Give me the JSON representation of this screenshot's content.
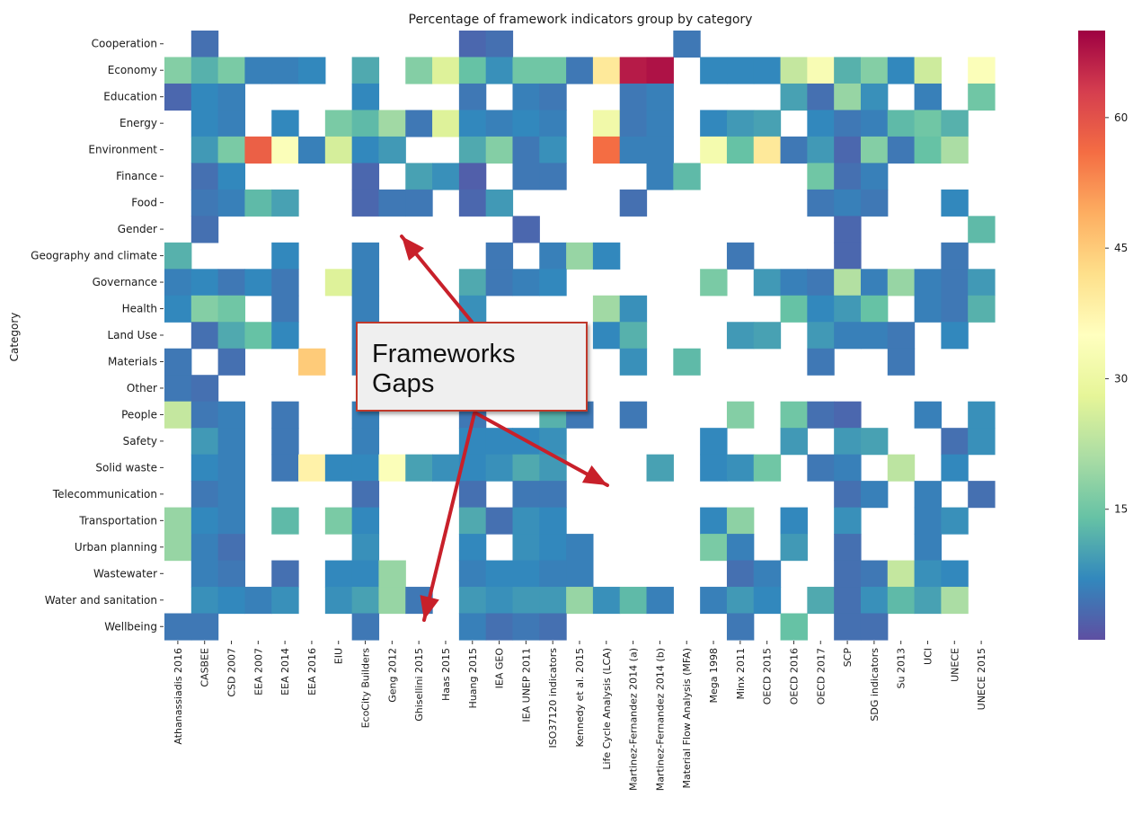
{
  "chart_data": {
    "type": "heatmap",
    "title": "Percentage of framework indicators group by category",
    "xlabel": "",
    "ylabel": "Category",
    "columns": [
      "Athanassiadis 2016",
      "CASBEE",
      "CSD 2007",
      "EEA 2007",
      "EEA 2014",
      "EEA 2016",
      "EIU",
      "EcoCity Builders",
      "Geng 2012",
      "Ghisellini 2015",
      "Haas 2015",
      "Huang 2015",
      "IEA GEO",
      "IEA UNEP 2011",
      "ISO37120 indicators",
      "Kennedy et al. 2015",
      "Life Cycle Analysis (LCA)",
      "Martinez-Fernandez 2014 (a)",
      "Martinez-Fernandez 2014 (b)",
      "Material Flow Analysis (MFA)",
      "Mega 1998",
      "Minx 2011",
      "OECD 2015",
      "OECD 2016",
      "OECD 2017",
      "SCP",
      "SDG indicators",
      "Su 2013",
      "UCI",
      "UNECE",
      "UNECE 2015"
    ],
    "rows": [
      "Cooperation",
      "Economy",
      "Education",
      "Energy",
      "Environment",
      "Finance",
      "Food",
      "Gender",
      "Geography and climate",
      "Governance",
      "Health",
      "Land Use",
      "Materials",
      "Other",
      "People",
      "Safety",
      "Solid waste",
      "Telecommunication",
      "Transportation",
      "Urban planning",
      "Wastewater",
      "Water and sanitation",
      "Wellbeing"
    ],
    "values": [
      [
        null,
        4,
        null,
        null,
        null,
        null,
        null,
        null,
        null,
        null,
        null,
        3,
        4,
        null,
        null,
        null,
        null,
        null,
        null,
        5,
        null,
        null,
        null,
        null,
        null,
        null,
        null,
        null,
        null,
        null,
        null
      ],
      [
        17,
        12,
        16,
        6,
        6,
        7,
        null,
        11,
        null,
        17,
        27,
        14,
        8,
        15,
        15,
        5,
        40,
        67,
        68,
        null,
        7,
        7,
        7,
        24,
        33,
        12,
        17,
        7,
        25,
        null,
        34
      ],
      [
        3,
        7,
        6,
        null,
        null,
        null,
        null,
        7,
        null,
        null,
        null,
        5,
        null,
        6,
        5,
        null,
        null,
        5,
        6,
        null,
        null,
        null,
        null,
        10,
        4,
        19,
        8,
        null,
        6,
        null,
        15
      ],
      [
        null,
        7,
        6,
        null,
        7,
        null,
        16,
        13,
        20,
        5,
        27,
        7,
        6,
        7,
        6,
        null,
        31,
        5,
        6,
        null,
        7,
        9,
        10,
        null,
        7,
        5,
        6,
        13,
        15,
        12,
        null
      ],
      [
        null,
        9,
        16,
        58,
        34,
        6,
        26,
        7,
        9,
        null,
        null,
        11,
        17,
        5,
        8,
        null,
        56,
        6,
        6,
        null,
        32,
        14,
        40,
        5,
        9,
        3,
        17,
        5,
        14,
        21,
        null
      ],
      [
        null,
        4,
        7,
        null,
        null,
        null,
        null,
        3,
        null,
        10,
        8,
        2,
        null,
        5,
        5,
        null,
        null,
        null,
        6,
        13,
        null,
        null,
        null,
        null,
        15,
        4,
        6,
        null,
        null,
        null,
        null
      ],
      [
        null,
        5,
        6,
        13,
        10,
        null,
        null,
        3,
        5,
        5,
        null,
        3,
        9,
        null,
        null,
        null,
        null,
        4,
        null,
        null,
        null,
        null,
        null,
        null,
        5,
        6,
        5,
        null,
        null,
        7,
        null
      ],
      [
        null,
        4,
        null,
        null,
        null,
        null,
        null,
        null,
        null,
        null,
        null,
        null,
        null,
        3,
        null,
        null,
        null,
        null,
        null,
        null,
        null,
        null,
        null,
        null,
        null,
        3,
        null,
        null,
        null,
        null,
        13
      ],
      [
        12,
        null,
        null,
        null,
        7,
        null,
        null,
        6,
        null,
        null,
        null,
        null,
        5,
        null,
        6,
        19,
        7,
        null,
        null,
        null,
        null,
        5,
        null,
        null,
        null,
        3,
        null,
        null,
        null,
        5,
        null
      ],
      [
        6,
        7,
        5,
        7,
        5,
        null,
        27,
        6,
        null,
        null,
        null,
        11,
        5,
        6,
        7,
        null,
        null,
        null,
        null,
        null,
        16,
        null,
        9,
        6,
        5,
        22,
        6,
        19,
        6,
        5,
        9
      ],
      [
        7,
        17,
        15,
        null,
        5,
        null,
        null,
        6,
        null,
        null,
        null,
        8,
        null,
        null,
        null,
        null,
        20,
        8,
        null,
        null,
        null,
        null,
        null,
        14,
        7,
        9,
        14,
        null,
        6,
        5,
        12
      ],
      [
        null,
        4,
        11,
        14,
        7,
        null,
        null,
        6,
        null,
        null,
        null,
        null,
        null,
        null,
        null,
        null,
        7,
        12,
        null,
        null,
        null,
        9,
        10,
        null,
        9,
        6,
        6,
        5,
        null,
        7,
        null
      ],
      [
        5,
        null,
        4,
        null,
        null,
        45,
        null,
        6,
        null,
        null,
        null,
        null,
        null,
        null,
        null,
        null,
        null,
        8,
        null,
        13,
        null,
        null,
        null,
        null,
        5,
        null,
        null,
        5,
        null,
        null,
        null
      ],
      [
        5,
        4,
        null,
        null,
        null,
        null,
        null,
        null,
        null,
        null,
        null,
        null,
        null,
        null,
        null,
        null,
        null,
        null,
        null,
        null,
        null,
        null,
        null,
        null,
        null,
        null,
        null,
        null,
        null,
        null,
        null
      ],
      [
        24,
        5,
        6,
        null,
        5,
        null,
        null,
        6,
        null,
        null,
        null,
        5,
        null,
        null,
        12,
        5,
        null,
        5,
        null,
        null,
        null,
        17,
        null,
        15,
        4,
        3,
        null,
        null,
        6,
        null,
        8
      ],
      [
        null,
        9,
        6,
        null,
        5,
        null,
        null,
        6,
        null,
        null,
        null,
        7,
        7,
        7,
        8,
        null,
        null,
        null,
        null,
        null,
        7,
        null,
        null,
        9,
        null,
        9,
        10,
        null,
        null,
        4,
        8
      ],
      [
        null,
        7,
        6,
        null,
        5,
        38,
        7,
        7,
        34,
        10,
        8,
        7,
        8,
        11,
        9,
        null,
        null,
        null,
        10,
        null,
        7,
        8,
        15,
        null,
        5,
        6,
        null,
        23,
        null,
        7,
        null
      ],
      [
        null,
        5,
        6,
        null,
        null,
        null,
        null,
        4,
        null,
        null,
        null,
        4,
        null,
        5,
        5,
        null,
        null,
        null,
        null,
        null,
        null,
        null,
        null,
        null,
        null,
        4,
        6,
        null,
        6,
        null,
        4
      ],
      [
        19,
        7,
        6,
        null,
        13,
        null,
        16,
        7,
        null,
        null,
        null,
        11,
        4,
        8,
        7,
        null,
        null,
        null,
        null,
        null,
        7,
        18,
        null,
        7,
        null,
        8,
        null,
        null,
        6,
        8,
        null
      ],
      [
        19,
        6,
        4,
        null,
        null,
        null,
        null,
        8,
        null,
        null,
        null,
        7,
        null,
        8,
        7,
        6,
        null,
        null,
        null,
        null,
        16,
        6,
        null,
        9,
        null,
        4,
        null,
        null,
        6,
        null,
        null
      ],
      [
        null,
        6,
        5,
        null,
        4,
        null,
        7,
        7,
        19,
        null,
        null,
        6,
        7,
        7,
        6,
        6,
        null,
        null,
        null,
        null,
        null,
        4,
        6,
        null,
        null,
        4,
        5,
        24,
        8,
        7,
        null
      ],
      [
        null,
        8,
        7,
        6,
        8,
        null,
        8,
        10,
        19,
        5,
        null,
        9,
        8,
        9,
        9,
        19,
        8,
        13,
        6,
        null,
        6,
        9,
        7,
        null,
        11,
        4,
        8,
        13,
        10,
        21,
        null
      ],
      [
        5,
        5,
        null,
        null,
        null,
        null,
        null,
        5,
        null,
        null,
        null,
        6,
        4,
        5,
        4,
        null,
        null,
        null,
        null,
        null,
        null,
        5,
        null,
        14,
        null,
        4,
        4,
        null,
        null,
        null,
        null
      ]
    ],
    "vmin": 0,
    "vmax": 70,
    "colorbar_ticks": [
      15,
      30,
      45,
      60
    ],
    "colormap": "Spectral_r",
    "annotation": {
      "text": "Frameworks\nGaps",
      "arrow_color": "#c8202a"
    }
  }
}
